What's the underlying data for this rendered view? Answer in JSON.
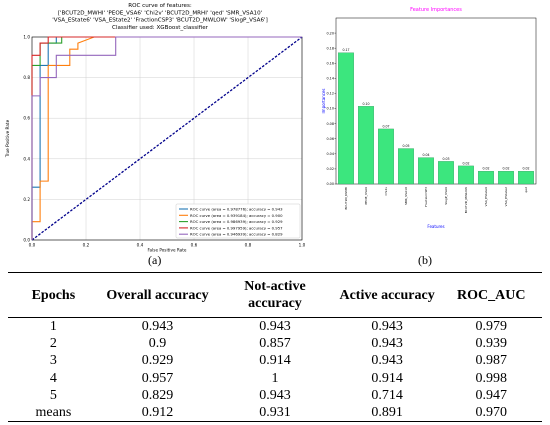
{
  "figure": {
    "sublabel_a": "(a)",
    "sublabel_b": "(b)"
  },
  "chart_data": [
    {
      "type": "line",
      "title_lines": [
        "ROC curve of features:",
        "['BCUT2D_MWHI' 'PEOE_VSA6' 'Chi2v' 'BCUT2D_MRHI' 'qed' 'SMR_VSA10'",
        "'VSA_EState6' 'VSA_EState2' 'FractionCSP3' 'BCUT2D_MWLOW' 'SlogP_VSA6']",
        "Classifier used: XGBoost_classifier"
      ],
      "xlabel": "False Positive Rate",
      "ylabel": "True Positive Rate",
      "xlim": [
        0,
        1
      ],
      "ylim": [
        0,
        1
      ],
      "xticks": [
        "0.0",
        "0.2",
        "0.4",
        "0.6",
        "0.8",
        "1.0"
      ],
      "yticks": [
        "0.0",
        "0.2",
        "0.4",
        "0.6",
        "0.8",
        "1.0"
      ],
      "grid": true,
      "legend_position": "lower-right",
      "series": [
        {
          "name": "ROC curve (area = 0.978776); accuracy = 0.943",
          "color": "#1f77b4",
          "x": [
            0,
            0,
            0.03,
            0.03,
            0.06,
            0.06,
            0.09,
            0.09,
            1
          ],
          "y": [
            0,
            0.26,
            0.26,
            0.86,
            0.86,
            0.97,
            0.97,
            1,
            1
          ]
        },
        {
          "name": "ROC curve (area = 0.939184); accuracy = 0.900",
          "color": "#ff7f0e",
          "x": [
            0,
            0,
            0.03,
            0.03,
            0.06,
            0.06,
            0.14,
            0.14,
            0.17,
            0.17,
            0.23,
            1
          ],
          "y": [
            0,
            0.09,
            0.09,
            0.29,
            0.29,
            0.86,
            0.86,
            0.94,
            0.94,
            0.97,
            1,
            1
          ]
        },
        {
          "name": "ROC curve (area = 0.986939); accuracy = 0.929",
          "color": "#2ca02c",
          "x": [
            0,
            0,
            0.03,
            0.03,
            0.09,
            0.09,
            0.11,
            0.11,
            1
          ],
          "y": [
            0,
            0.86,
            0.86,
            0.97,
            0.97,
            0.97,
            0.97,
            1,
            1
          ]
        },
        {
          "name": "ROC curve (area = 0.997959); accuracy = 0.957",
          "color": "#d62728",
          "x": [
            0,
            0,
            0.03,
            0.03,
            0.06,
            0.06,
            1
          ],
          "y": [
            0,
            0.91,
            0.91,
            0.97,
            0.97,
            1,
            1
          ]
        },
        {
          "name": "ROC curve (area = 0.946939); accuracy = 0.829",
          "color": "#9467bd",
          "x": [
            0,
            0,
            0.03,
            0.03,
            0.09,
            0.09,
            0.31,
            0.31,
            1
          ],
          "y": [
            0,
            0.71,
            0.71,
            0.8,
            0.8,
            0.91,
            0.91,
            1,
            1
          ]
        }
      ],
      "diagonal_color": "#00008b"
    },
    {
      "type": "bar",
      "title": "Feature Importances",
      "title_color": "#ff00ff",
      "xlabel": "Features",
      "ylabel": "Importances",
      "axis_label_color": "#0000ff",
      "bar_color": "#3ce67e",
      "ylim": [
        0,
        0.22
      ],
      "yticks": [
        "0.00",
        "0.02",
        "0.04",
        "0.06",
        "0.08",
        "0.10",
        "0.12",
        "0.14",
        "0.16",
        "0.18",
        "0.20"
      ],
      "categories": [
        "BCUT2D_MWHI",
        "PEOE_VSA6",
        "Chi2v",
        "SMR_VSA10",
        "FractionCSP3",
        "SlogP_VSA6",
        "BCUT2D_MWLOW",
        "VSA_EState6",
        "VSA_EState2",
        "qed"
      ],
      "values": [
        0.174,
        0.103,
        0.073,
        0.047,
        0.035,
        0.03,
        0.024,
        0.017,
        0.017,
        0.017
      ],
      "value_labels": [
        "0.17",
        "0.10",
        "0.07",
        "0.05",
        "0.04",
        "0.03",
        "0.02",
        "0.02",
        "0.02",
        "0.02"
      ]
    }
  ],
  "table": {
    "headers": [
      "Epochs",
      "Overall accuracy",
      "Not-active accuracy",
      "Active accuracy",
      "ROC_AUC"
    ],
    "rows": [
      [
        "1",
        "0.943",
        "0.943",
        "0.943",
        "0.979"
      ],
      [
        "2",
        "0.9",
        "0.857",
        "0.943",
        "0.939"
      ],
      [
        "3",
        "0.929",
        "0.914",
        "0.943",
        "0.987"
      ],
      [
        "4",
        "0.957",
        "1",
        "0.914",
        "0.998"
      ],
      [
        "5",
        "0.829",
        "0.943",
        "0.714",
        "0.947"
      ],
      [
        "means",
        "0.912",
        "0.931",
        "0.891",
        "0.970"
      ]
    ]
  }
}
